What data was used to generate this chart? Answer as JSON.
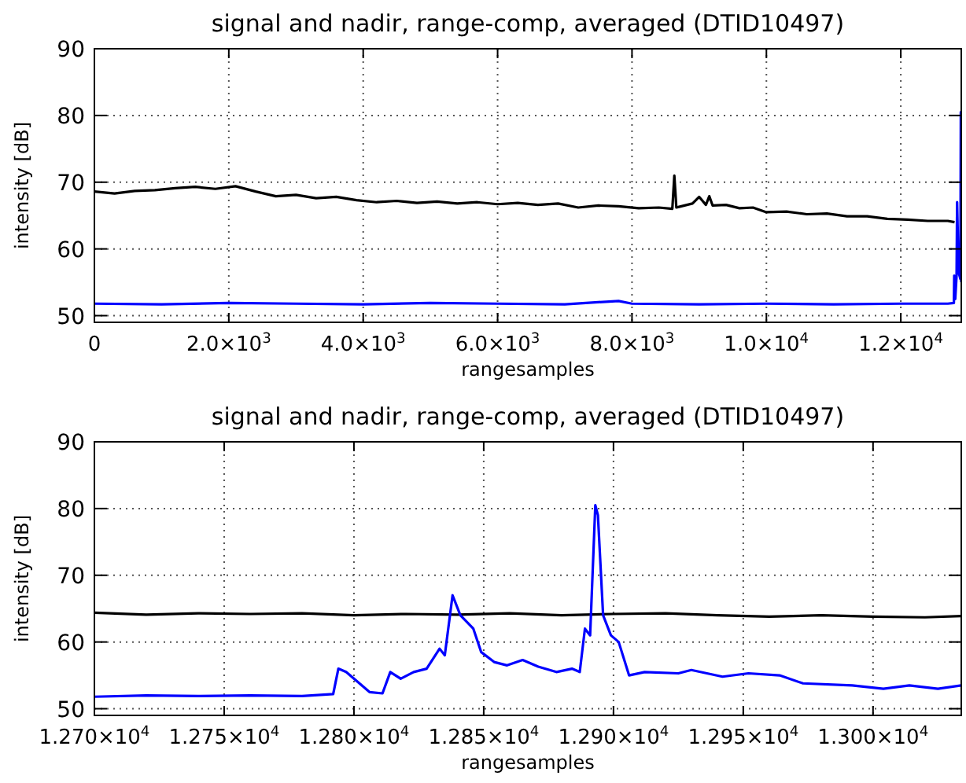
{
  "chart_data": [
    {
      "type": "line",
      "title": "signal and nadir, range-comp, averaged (DTID10497)",
      "xlabel": "rangesamples",
      "ylabel": "intensity [dB]",
      "xlim": [
        0,
        12900
      ],
      "ylim": [
        49,
        90
      ],
      "xticks": [
        {
          "value": 0,
          "label": "0"
        },
        {
          "value": 2000,
          "label": "2.0×10$^{3}$"
        },
        {
          "value": 4000,
          "label": "4.0×10$^{3}$"
        },
        {
          "value": 6000,
          "label": "6.0×10$^{3}$"
        },
        {
          "value": 8000,
          "label": "8.0×10$^{3}$"
        },
        {
          "value": 10000,
          "label": "1.0×10$^{4}$"
        },
        {
          "value": 12000,
          "label": "1.2×10$^{4}$"
        }
      ],
      "yticks": [
        50,
        60,
        70,
        80,
        90
      ],
      "grid": true,
      "line_style": "solid",
      "marker": "none",
      "series": [
        {
          "color": "#000000",
          "x": [
            0,
            300,
            600,
            900,
            1200,
            1500,
            1800,
            2100,
            2400,
            2700,
            3000,
            3300,
            3600,
            3900,
            4200,
            4500,
            4800,
            5100,
            5400,
            5700,
            6000,
            6300,
            6600,
            6900,
            7200,
            7500,
            7800,
            8100,
            8400,
            8600,
            8630,
            8660,
            8700,
            8900,
            9000,
            9100,
            9150,
            9200,
            9400,
            9600,
            9800,
            10000,
            10300,
            10600,
            10900,
            11200,
            11500,
            11800,
            12100,
            12400,
            12700,
            12800
          ],
          "values": [
            68.6,
            68.3,
            68.7,
            68.8,
            69.1,
            69.3,
            69.0,
            69.4,
            68.6,
            67.9,
            68.1,
            67.6,
            67.8,
            67.3,
            67.0,
            67.2,
            66.9,
            67.1,
            66.8,
            67.0,
            66.7,
            66.9,
            66.6,
            66.8,
            66.2,
            66.5,
            66.4,
            66.1,
            66.2,
            66.0,
            71.0,
            66.2,
            66.3,
            66.8,
            67.8,
            66.6,
            67.9,
            66.5,
            66.6,
            66.1,
            66.2,
            65.5,
            65.6,
            65.2,
            65.3,
            64.9,
            64.9,
            64.5,
            64.4,
            64.2,
            64.2,
            64.0
          ]
        },
        {
          "color": "#0000ff",
          "x": [
            0,
            1000,
            2000,
            3000,
            4000,
            5000,
            6000,
            7000,
            7800,
            8000,
            9000,
            10000,
            11000,
            12000,
            12700,
            12790,
            12795,
            12810,
            12830,
            12838,
            12860,
            12887,
            12893,
            12899,
            12900
          ],
          "values": [
            51.8,
            51.7,
            51.9,
            51.8,
            51.7,
            51.9,
            51.8,
            51.7,
            52.2,
            51.8,
            51.7,
            51.8,
            51.7,
            51.8,
            51.8,
            51.9,
            56.0,
            52.5,
            56.0,
            67.0,
            56.5,
            55.5,
            80.5,
            61.0,
            55.0
          ]
        }
      ]
    },
    {
      "type": "line",
      "title": "signal and nadir, range-comp, averaged (DTID10497)",
      "xlabel": "rangesamples",
      "ylabel": "intensity [dB]",
      "xlim": [
        12700,
        13034
      ],
      "ylim": [
        49,
        90
      ],
      "xticks": [
        {
          "value": 12700,
          "label": "1.270×10$^{4}$"
        },
        {
          "value": 12750,
          "label": "1.275×10$^{4}$"
        },
        {
          "value": 12800,
          "label": "1.280×10$^{4}$"
        },
        {
          "value": 12850,
          "label": "1.285×10$^{4}$"
        },
        {
          "value": 12900,
          "label": "1.290×10$^{4}$"
        },
        {
          "value": 12950,
          "label": "1.295×10$^{4}$"
        },
        {
          "value": 13000,
          "label": "1.300×10$^{4}$"
        }
      ],
      "yticks": [
        50,
        60,
        70,
        80,
        90
      ],
      "grid": true,
      "line_style": "solid",
      "marker": "none",
      "series": [
        {
          "color": "#000000",
          "x": [
            12700,
            12720,
            12740,
            12760,
            12780,
            12800,
            12820,
            12840,
            12860,
            12880,
            12900,
            12920,
            12940,
            12960,
            12980,
            13000,
            13020,
            13034
          ],
          "values": [
            64.4,
            64.1,
            64.3,
            64.2,
            64.3,
            64.0,
            64.2,
            64.1,
            64.3,
            64.0,
            64.2,
            64.3,
            64.0,
            63.8,
            64.0,
            63.8,
            63.7,
            63.9
          ]
        },
        {
          "color": "#0000ff",
          "x": [
            12700,
            12720,
            12740,
            12760,
            12780,
            12792,
            12794,
            12797,
            12806,
            12811,
            12814,
            12818,
            12823,
            12828,
            12833,
            12835,
            12838,
            12841,
            12846,
            12849,
            12854,
            12859,
            12865,
            12871,
            12878,
            12884,
            12887,
            12889,
            12891,
            12893,
            12894,
            12896,
            12899,
            12902,
            12906,
            12912,
            12925,
            12930,
            12942,
            12952,
            12964,
            12973,
            12992,
            13004,
            13014,
            13025,
            13034
          ],
          "values": [
            51.8,
            52.0,
            51.9,
            52.0,
            51.9,
            52.2,
            56.0,
            55.5,
            52.5,
            52.3,
            55.5,
            54.5,
            55.5,
            56.0,
            59.0,
            58.0,
            67.0,
            64.0,
            62.0,
            58.5,
            57.0,
            56.5,
            57.3,
            56.3,
            55.5,
            56.0,
            55.5,
            62.0,
            61.0,
            80.5,
            79.0,
            64.0,
            61.0,
            60.0,
            55.0,
            55.5,
            55.3,
            55.8,
            54.8,
            55.3,
            55.0,
            53.8,
            53.5,
            53.0,
            53.5,
            53.0,
            53.5
          ]
        }
      ]
    }
  ]
}
